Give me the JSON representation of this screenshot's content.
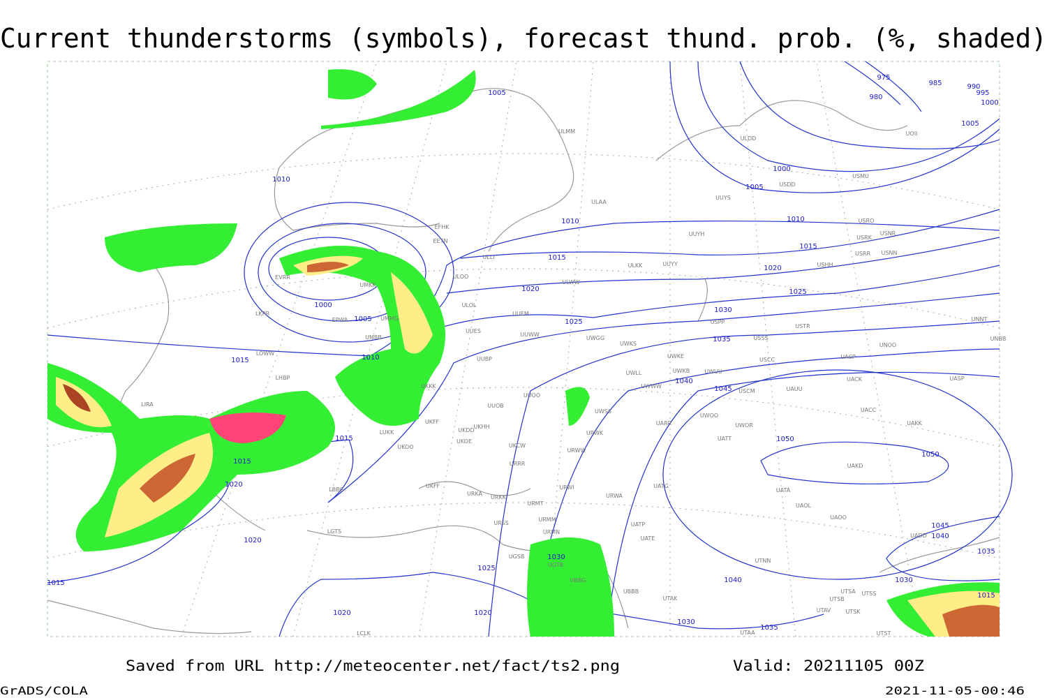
{
  "header": {
    "title": "Current thunderstorms (symbols), forecast thund. prob. (%, shaded)"
  },
  "map": {
    "isobar_labels": [
      "1005",
      "975",
      "980",
      "985",
      "990",
      "995",
      "1000",
      "1005",
      "1010",
      "1000",
      "1005",
      "1010",
      "1010",
      "1015",
      "1015",
      "1020",
      "1000",
      "1005",
      "1020",
      "1025",
      "1030",
      "1025",
      "1035",
      "1015",
      "1010",
      "1040",
      "1045",
      "1015",
      "1050",
      "1050",
      "1015",
      "1020",
      "1020",
      "1045",
      "1040",
      "1035",
      "1030",
      "1025",
      "1040",
      "1030",
      "1015",
      "1015",
      "1020",
      "1020",
      "1030",
      "1035"
    ],
    "stations": [
      "ULMM",
      "ULDD",
      "UOII",
      "USMU",
      "USDD",
      "ULAA",
      "UUYS",
      "USRO",
      "EFHK",
      "USRK",
      "USNR",
      "EETN",
      "UUYH",
      "USRR",
      "USNN",
      "ULLI",
      "ULKK",
      "UUYY",
      "USHH",
      "ULOO",
      "EVRR",
      "ULWW",
      "UMKK",
      "UUEM",
      "ULOL",
      "UMMG",
      "EPWA",
      "LKPR",
      "USPP",
      "USTR",
      "UNNT",
      "UMBB",
      "UUWW",
      "UUES",
      "UWGG",
      "UWKS",
      "USSS",
      "UNOO",
      "UNBB",
      "LOWW",
      "UUBP",
      "UWKE",
      "USCC",
      "UACP",
      "UWLL",
      "UWKB",
      "UWUU",
      "UWWW",
      "UACK",
      "UASP",
      "LHBP",
      "UKKK",
      "USCM",
      "UAUU",
      "LIRA",
      "UUOO",
      "UUOB",
      "UWSS",
      "UACC",
      "UARR",
      "UWOO",
      "UWOR",
      "UAKK",
      "LUKK",
      "UKHH",
      "UKDD",
      "UKFF",
      "UKOE",
      "URWK",
      "UATT",
      "UKCW",
      "URWW",
      "UKOO",
      "UAKD",
      "URRR",
      "UKFF",
      "URKA",
      "URKK",
      "URWI",
      "UATG",
      "UATA",
      "UAOL",
      "URWA",
      "URMT",
      "LBBG",
      "URMM",
      "URSS",
      "UATP",
      "UAOO",
      "UATE",
      "URMN",
      "UADD",
      "LGTS",
      "UGSB",
      "UGTB",
      "UTNN",
      "UBBG",
      "UBBB",
      "UTAK",
      "UTSA",
      "UTSS",
      "UTSB",
      "UTAV",
      "UTSK",
      "UTAA",
      "UTST",
      "LCLK"
    ]
  },
  "footer": {
    "source": "Saved from URL http://meteocenter.net/fact/ts2.png",
    "valid": "Valid: 20211105 00Z",
    "software": "GrADS/COLA",
    "timestamp": "2021-11-05-00:46"
  }
}
